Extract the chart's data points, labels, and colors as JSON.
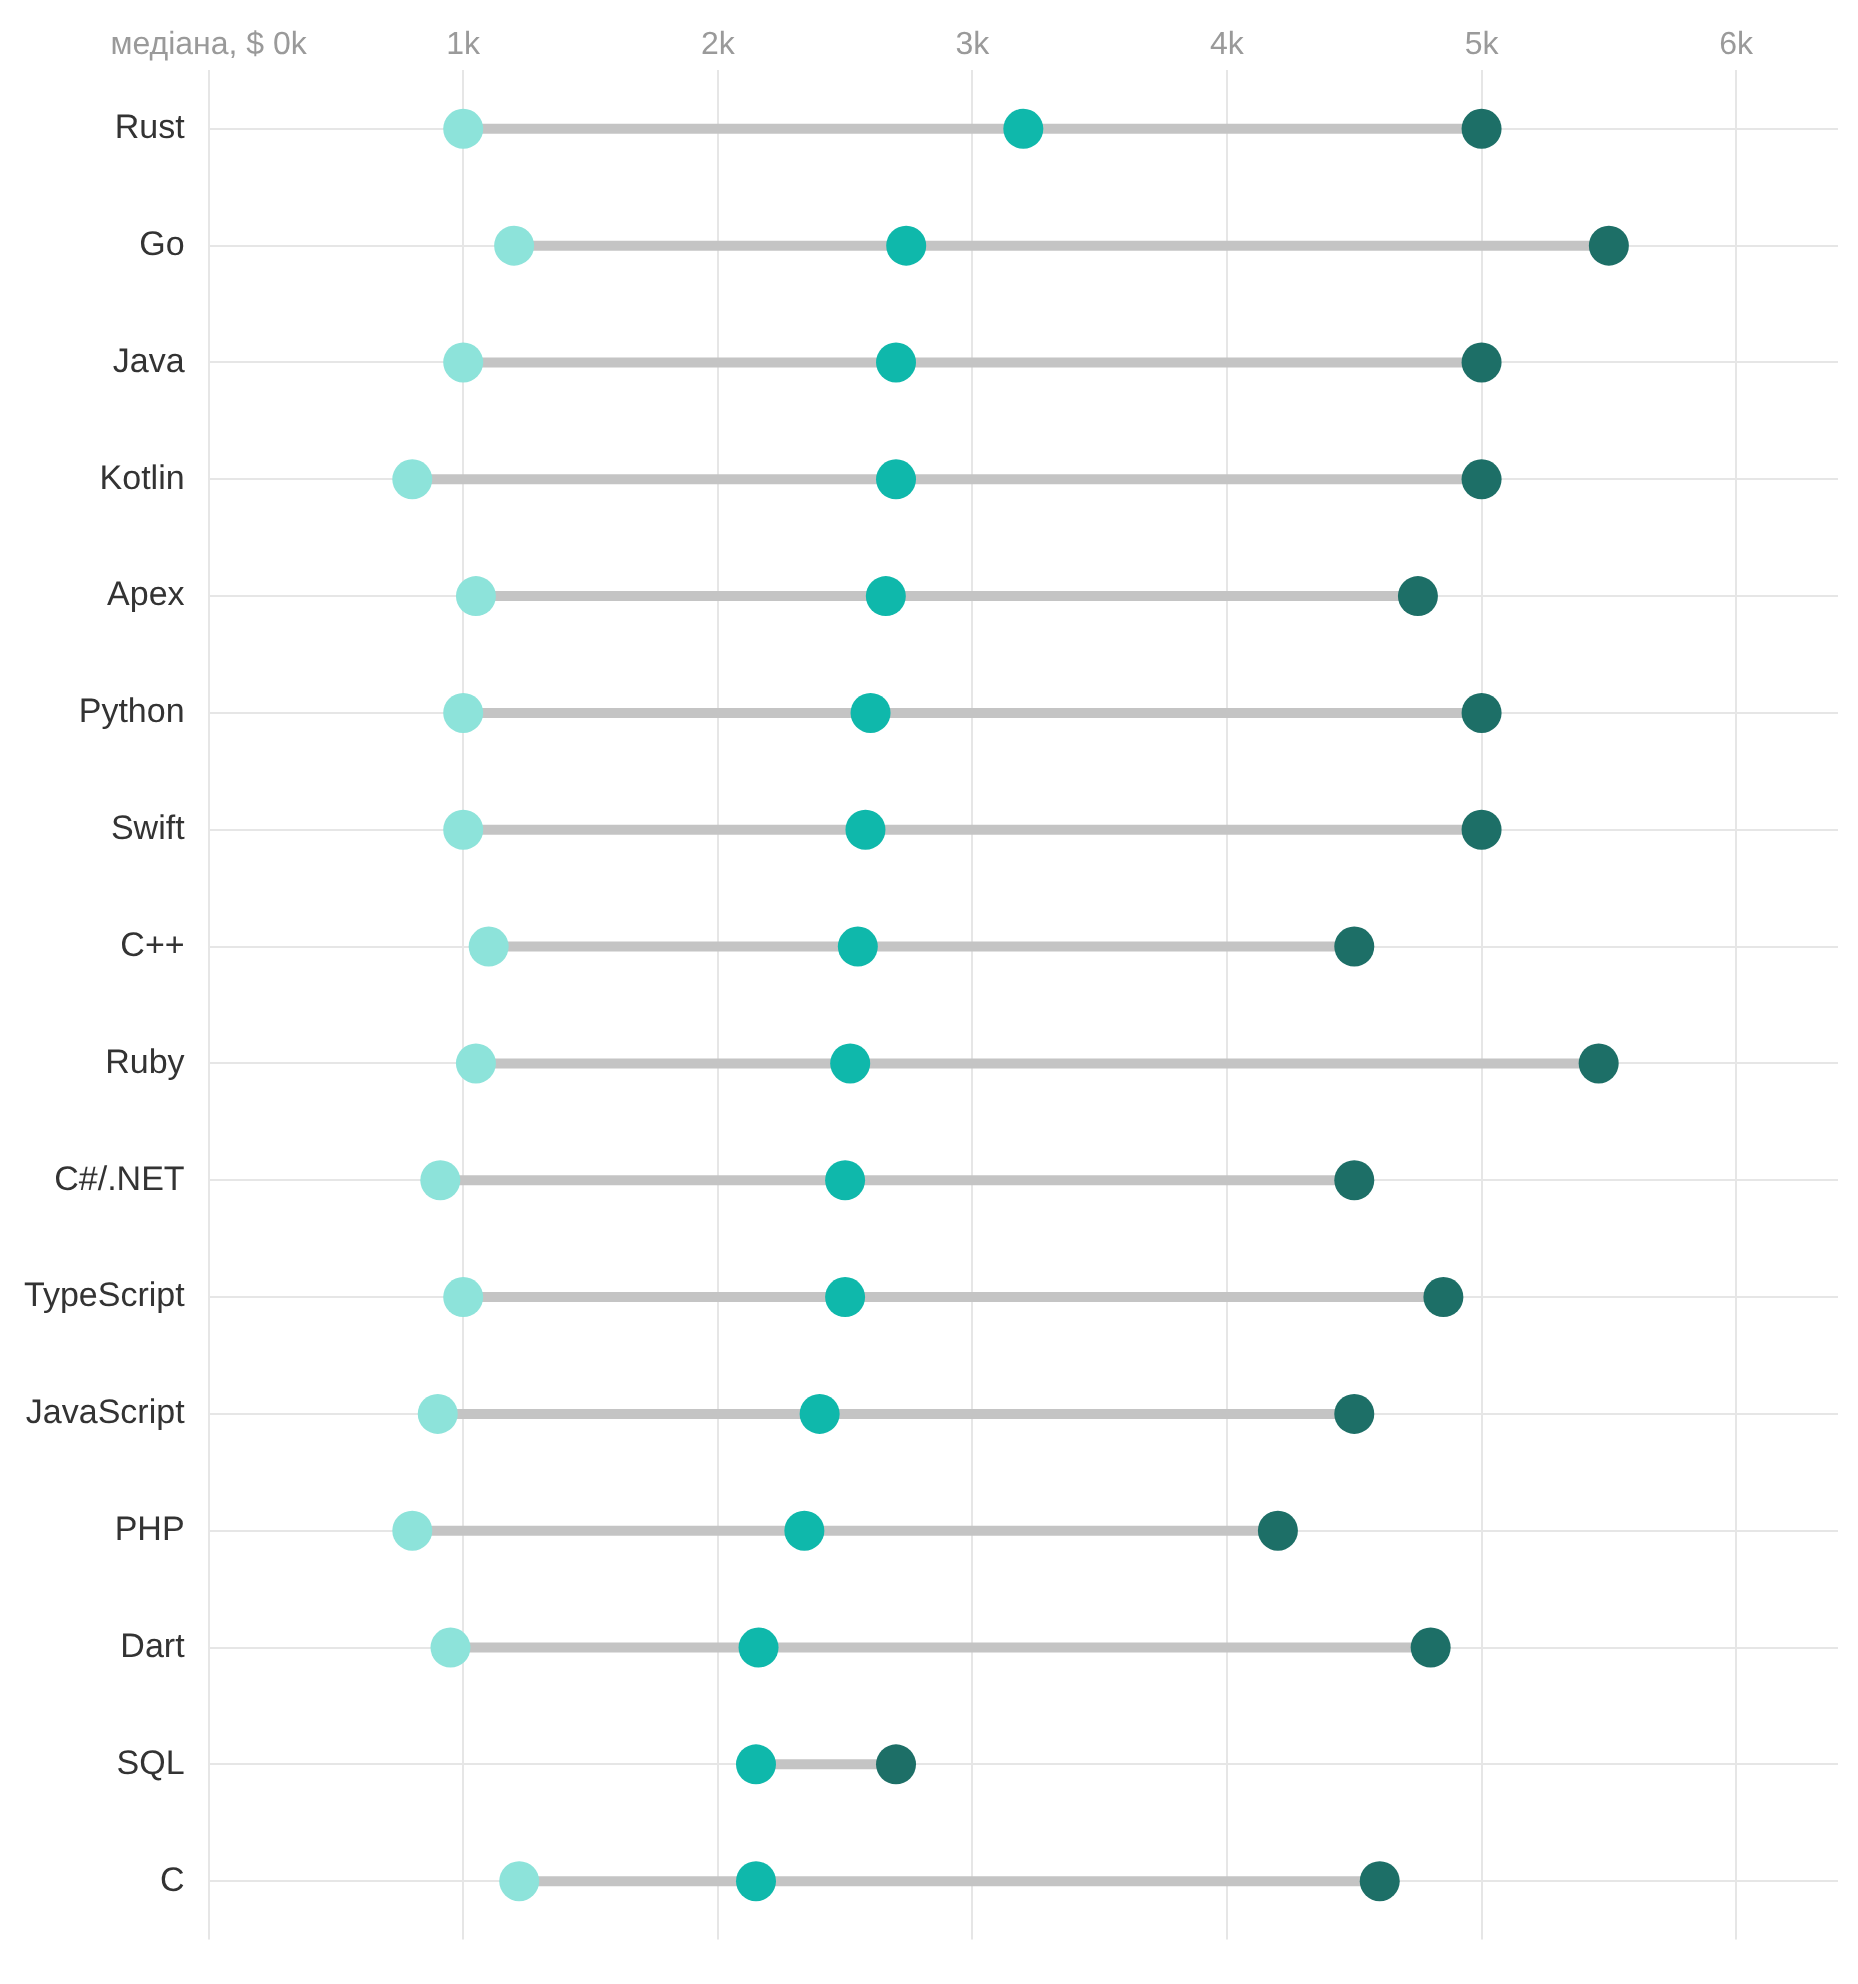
{
  "chart_data": {
    "type": "scatter",
    "orientation": "horizontal",
    "grid": true,
    "marker": "circle",
    "categories": [
      "Rust",
      "Go",
      "Java",
      "Kotlin",
      "Apex",
      "Python",
      "Swift",
      "C++",
      "Ruby",
      "C#/.NET",
      "TypeScript",
      "JavaScript",
      "PHP",
      "Dart",
      "SQL",
      "C"
    ],
    "xlim": [
      0,
      6.4
    ],
    "xticks": [
      {
        "value": 0,
        "label": "медіана, $ 0k"
      },
      {
        "value": 1,
        "label": "1k"
      },
      {
        "value": 2,
        "label": "2k"
      },
      {
        "value": 3,
        "label": "3k"
      },
      {
        "value": 4,
        "label": "4k"
      },
      {
        "value": 5,
        "label": "5k"
      },
      {
        "value": 6,
        "label": "6k"
      }
    ],
    "series": [
      {
        "color": "#8de3da",
        "values": [
          1.0,
          1.2,
          1.0,
          0.8,
          1.05,
          1.0,
          1.0,
          1.1,
          1.05,
          0.91,
          1.0,
          0.9,
          0.8,
          0.95,
          null,
          1.22
        ]
      },
      {
        "color": "#0fb8ab",
        "values": [
          3.2,
          2.74,
          2.7,
          2.7,
          2.66,
          2.6,
          2.58,
          2.55,
          2.52,
          2.5,
          2.5,
          2.4,
          2.34,
          2.16,
          2.15,
          2.15
        ]
      },
      {
        "color": "#1d6f67",
        "values": [
          5.0,
          5.5,
          5.0,
          5.0,
          4.75,
          5.0,
          5.0,
          4.5,
          5.46,
          4.5,
          4.85,
          4.5,
          4.2,
          4.8,
          2.7,
          4.6
        ]
      }
    ]
  }
}
